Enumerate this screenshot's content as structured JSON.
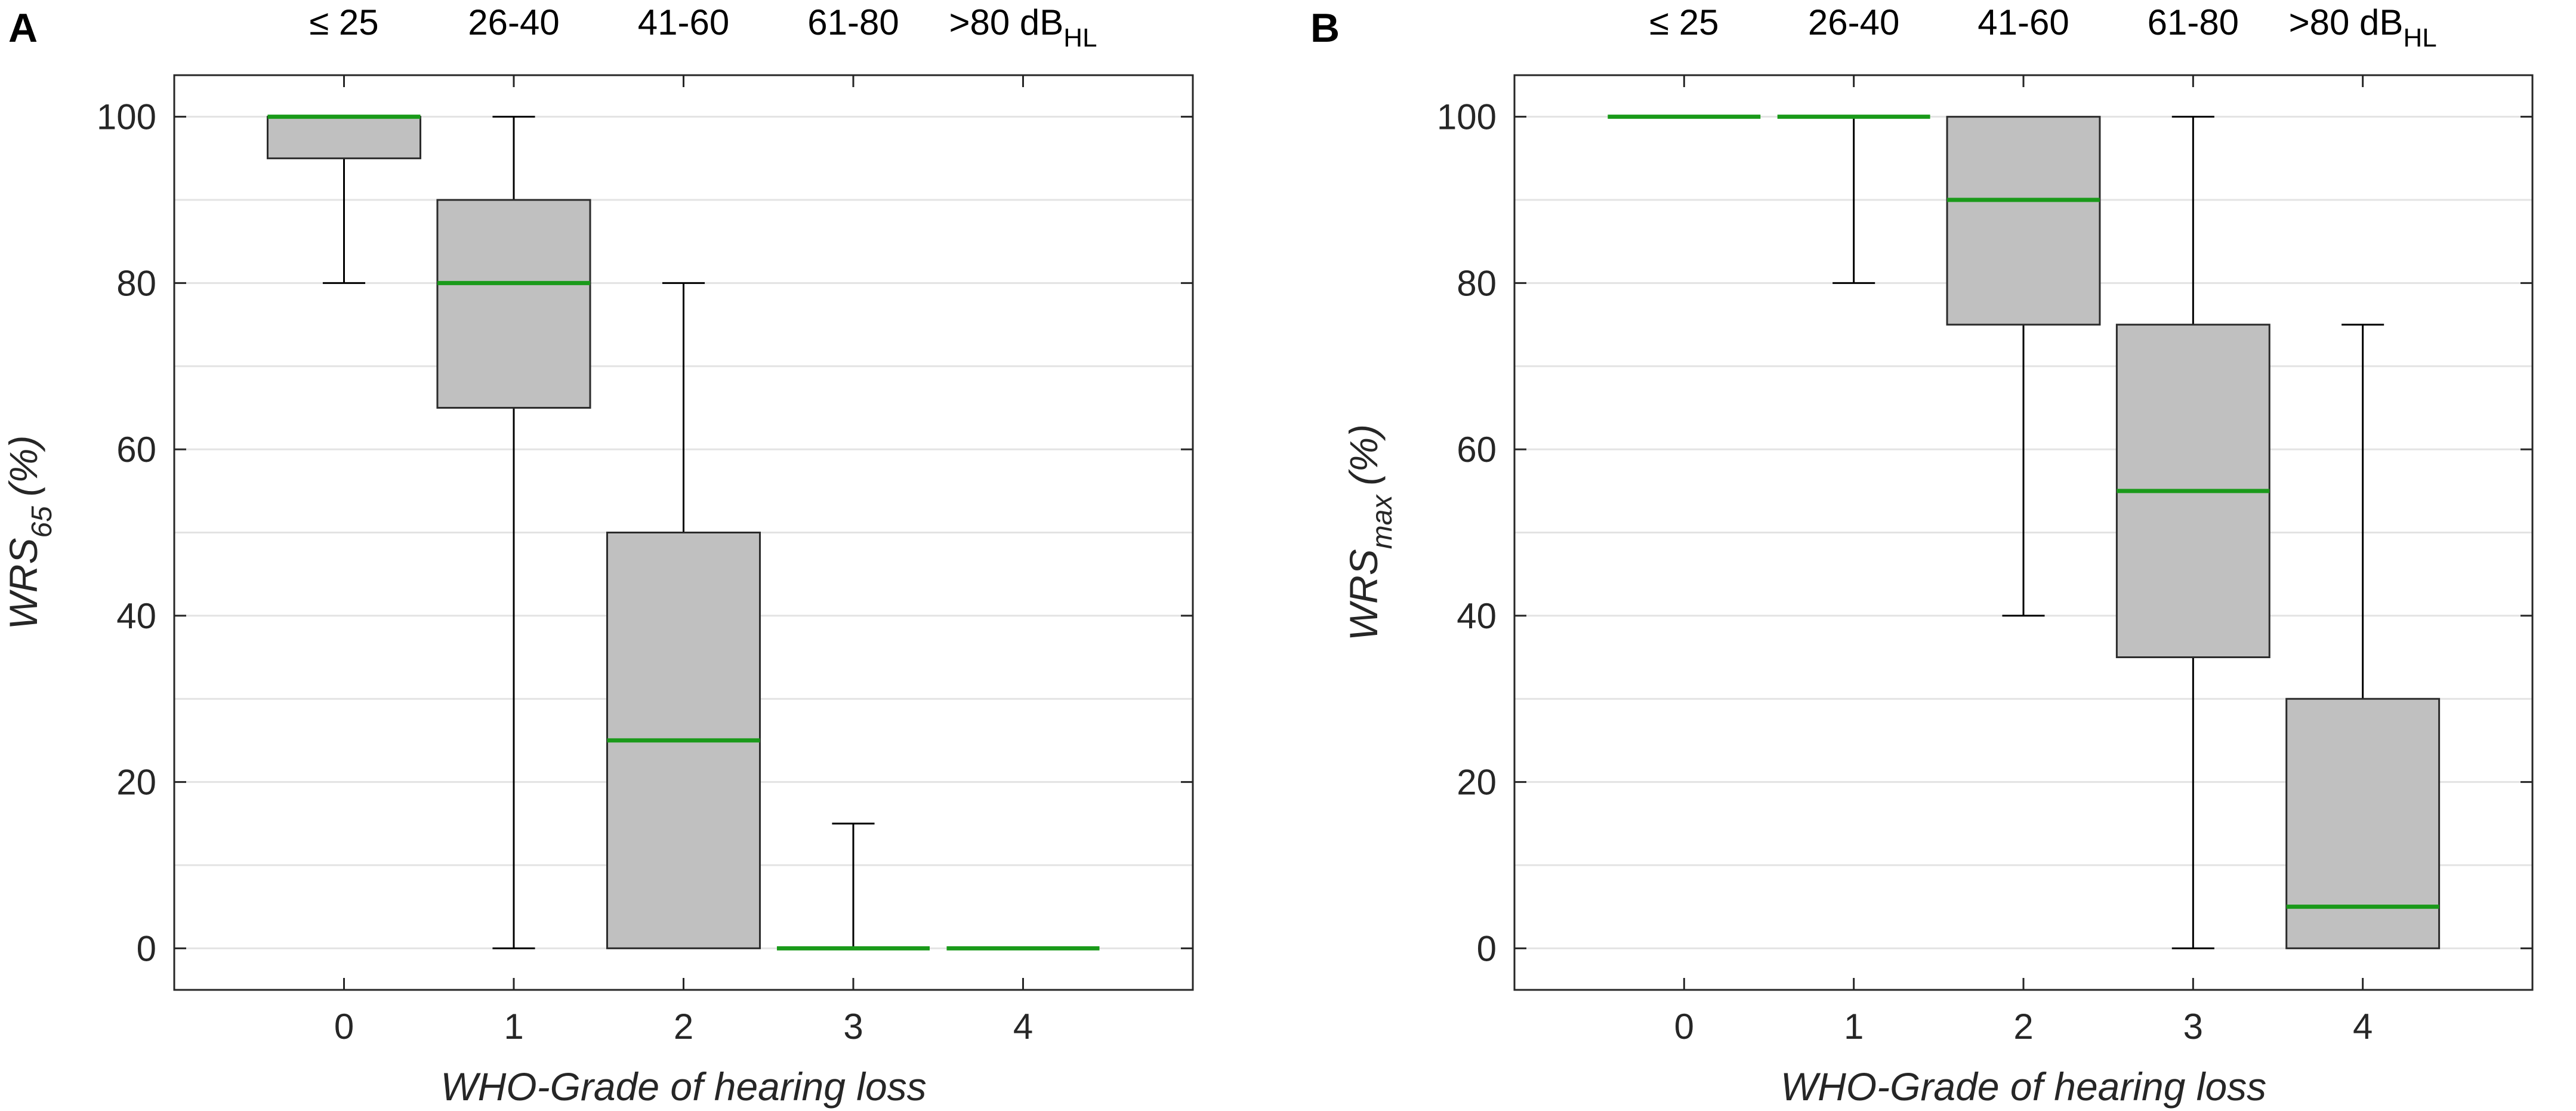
{
  "chart_data": [
    {
      "panel": "A",
      "type": "box",
      "xlabel": "WHO-Grade of hearing loss",
      "ylabel_main": "WRS",
      "ylabel_sub": "65",
      "ylabel_unit": "(%)",
      "categories": [
        "0",
        "1",
        "2",
        "3",
        "4"
      ],
      "top_labels": [
        "≤ 25",
        "26-40",
        "41-60",
        "61-80",
        ">80 dB"
      ],
      "top_label_last_sub": "HL",
      "ylim": [
        -5,
        105
      ],
      "yticks": [
        0,
        20,
        40,
        60,
        80,
        100
      ],
      "yticklabels": [
        "0",
        "20",
        "40",
        "60",
        "80",
        "100"
      ],
      "grid": true,
      "boxes": [
        {
          "category": "0",
          "min": 80,
          "q1": 95,
          "median": 100,
          "q3": 100,
          "max": 100
        },
        {
          "category": "1",
          "min": 0,
          "q1": 65,
          "median": 80,
          "q3": 90,
          "max": 100
        },
        {
          "category": "2",
          "min": 0,
          "q1": 0,
          "median": 25,
          "q3": 50,
          "max": 80
        },
        {
          "category": "3",
          "min": 0,
          "q1": 0,
          "median": 0,
          "q3": 0,
          "max": 15
        },
        {
          "category": "4",
          "min": 0,
          "q1": 0,
          "median": 0,
          "q3": 0,
          "max": 0
        }
      ]
    },
    {
      "panel": "B",
      "type": "box",
      "xlabel": "WHO-Grade of hearing loss",
      "ylabel_main": "WRS",
      "ylabel_sub": "max",
      "ylabel_unit": "(%)",
      "categories": [
        "0",
        "1",
        "2",
        "3",
        "4"
      ],
      "top_labels": [
        "≤ 25",
        "26-40",
        "41-60",
        "61-80",
        ">80 dB"
      ],
      "top_label_last_sub": "HL",
      "ylim": [
        -5,
        105
      ],
      "yticks": [
        0,
        20,
        40,
        60,
        80,
        100
      ],
      "yticklabels": [
        "0",
        "20",
        "40",
        "60",
        "80",
        "100"
      ],
      "grid": true,
      "boxes": [
        {
          "category": "0",
          "min": 100,
          "q1": 100,
          "median": 100,
          "q3": 100,
          "max": 100
        },
        {
          "category": "1",
          "min": 80,
          "q1": 100,
          "median": 100,
          "q3": 100,
          "max": 100
        },
        {
          "category": "2",
          "min": 40,
          "q1": 75,
          "median": 90,
          "q3": 100,
          "max": 100
        },
        {
          "category": "3",
          "min": 0,
          "q1": 35,
          "median": 55,
          "q3": 75,
          "max": 100
        },
        {
          "category": "4",
          "min": 0,
          "q1": 0,
          "median": 5,
          "q3": 30,
          "max": 75
        }
      ]
    }
  ],
  "colors": {
    "box_fill": "#c0c0c0",
    "box_edge": "#2b2b2b",
    "median": "#1a9a1a",
    "whisker": "#000000",
    "grid": "#e3e3e3",
    "axes": "#262626"
  }
}
